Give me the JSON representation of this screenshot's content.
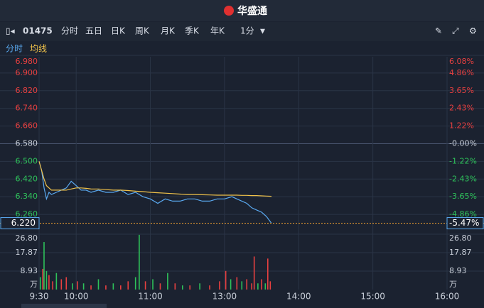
{
  "app": {
    "brand": "华盛通",
    "code": "01475",
    "tabs": [
      "分时",
      "五日",
      "日K",
      "周K",
      "月K",
      "季K",
      "年K"
    ],
    "interval": "1分",
    "legend": [
      "分时",
      "均线"
    ]
  },
  "chart_data": [
    {
      "type": "line",
      "base_price": 6.58,
      "x": [
        0,
        2,
        4,
        6,
        8,
        10,
        14,
        18,
        22,
        26,
        30,
        34,
        38,
        42,
        48,
        54,
        60,
        66,
        72,
        78,
        84,
        90,
        96,
        102,
        108,
        114,
        120,
        126,
        132,
        138,
        144,
        150,
        156,
        160,
        164,
        168,
        172,
        176,
        180,
        184,
        188
      ],
      "series": [
        {
          "name": "分时",
          "color": "#5aa9f0",
          "values": [
            6.5,
            6.46,
            6.38,
            6.33,
            6.36,
            6.35,
            6.36,
            6.37,
            6.38,
            6.41,
            6.39,
            6.37,
            6.37,
            6.36,
            6.37,
            6.36,
            6.36,
            6.37,
            6.35,
            6.36,
            6.34,
            6.33,
            6.31,
            6.33,
            6.32,
            6.32,
            6.33,
            6.33,
            6.32,
            6.32,
            6.33,
            6.33,
            6.34,
            6.33,
            6.32,
            6.31,
            6.29,
            6.28,
            6.27,
            6.25,
            6.22
          ]
        },
        {
          "name": "均线",
          "color": "#f0c24a",
          "values": [
            6.5,
            6.46,
            6.42,
            6.39,
            6.38,
            6.37,
            6.37,
            6.37,
            6.37,
            6.375,
            6.38,
            6.38,
            6.378,
            6.375,
            6.375,
            6.372,
            6.37,
            6.37,
            6.368,
            6.365,
            6.363,
            6.36,
            6.358,
            6.356,
            6.354,
            6.352,
            6.35,
            6.35,
            6.349,
            6.348,
            6.347,
            6.347,
            6.347,
            6.347,
            6.346,
            6.346,
            6.345,
            6.345,
            6.344,
            6.343,
            6.342
          ]
        }
      ],
      "xlim": [
        0,
        330
      ],
      "xticks": [
        {
          "value": 0,
          "label": "9:30"
        },
        {
          "value": 30,
          "label": "10:00"
        },
        {
          "value": 90,
          "label": "11:00"
        },
        {
          "value": 150,
          "label": "13:00"
        },
        {
          "value": 210,
          "label": "14:00"
        },
        {
          "value": 270,
          "label": "15:00"
        },
        {
          "value": 330,
          "label": "16:00"
        }
      ],
      "ylim": [
        6.18,
        6.98
      ],
      "yticks": [
        {
          "value": 6.98,
          "label": "6.980"
        },
        {
          "value": 6.9,
          "label": "6.900"
        },
        {
          "value": 6.82,
          "label": "6.820"
        },
        {
          "value": 6.74,
          "label": "6.740"
        },
        {
          "value": 6.66,
          "label": "6.660"
        },
        {
          "value": 6.58,
          "label": "6.580"
        },
        {
          "value": 6.5,
          "label": "6.500"
        },
        {
          "value": 6.42,
          "label": "6.420"
        },
        {
          "value": 6.34,
          "label": "6.340"
        },
        {
          "value": 6.26,
          "label": "6.260"
        }
      ],
      "y2lim": [
        -6.08,
        6.08
      ],
      "y2ticks": [
        {
          "value": 6.08,
          "label": "6.08%"
        },
        {
          "value": 4.86,
          "label": "4.86%"
        },
        {
          "value": 3.65,
          "label": "3.65%"
        },
        {
          "value": 2.43,
          "label": "2.43%"
        },
        {
          "value": 1.22,
          "label": "1.22%"
        },
        {
          "value": 0,
          "label": "-0.00%"
        },
        {
          "value": -1.22,
          "label": "-1.22%"
        },
        {
          "value": -2.43,
          "label": "-2.43%"
        },
        {
          "value": -3.65,
          "label": "-3.65%"
        },
        {
          "value": -4.86,
          "label": "-4.86%"
        }
      ],
      "last_price": {
        "value": 6.22,
        "label": "6.220"
      },
      "last_change": {
        "value": -5.47,
        "label": "-5.47%"
      },
      "up_color": "#e84040",
      "down_color": "#2ec25a",
      "grid": true
    },
    {
      "type": "bar",
      "unit": "万",
      "x": [
        1,
        3,
        4,
        6,
        8,
        11,
        14,
        18,
        22,
        27,
        31,
        36,
        42,
        48,
        54,
        60,
        66,
        72,
        78,
        81,
        86,
        92,
        98,
        104,
        110,
        116,
        122,
        130,
        138,
        146,
        151,
        155,
        160,
        164,
        168,
        172,
        174,
        177,
        180,
        183,
        185,
        187
      ],
      "values": [
        6,
        10,
        23,
        9,
        7,
        4,
        8,
        5,
        6,
        3,
        4,
        3,
        2,
        5,
        2,
        3,
        2,
        4,
        6,
        26.5,
        4,
        5,
        3,
        8,
        3,
        2,
        2,
        3,
        2,
        4,
        9,
        5,
        6,
        4,
        5,
        3,
        16,
        3,
        5,
        3,
        15,
        4
      ],
      "colors": [
        "#2ec25a",
        "#e84040",
        "#2ec25a",
        "#2ec25a",
        "#e84040",
        "#e84040",
        "#2ec25a",
        "#e84040",
        "#e84040",
        "#2ec25a",
        "#e84040",
        "#2ec25a",
        "#e84040",
        "#2ec25a",
        "#e84040",
        "#2ec25a",
        "#e84040",
        "#e84040",
        "#2ec25a",
        "#2ec25a",
        "#e84040",
        "#2ec25a",
        "#e84040",
        "#2ec25a",
        "#e84040",
        "#2ec25a",
        "#e84040",
        "#2ec25a",
        "#e84040",
        "#e84040",
        "#e84040",
        "#2ec25a",
        "#e84040",
        "#2ec25a",
        "#e84040",
        "#e84040",
        "#e84040",
        "#2ec25a",
        "#e84040",
        "#2ec25a",
        "#e84040",
        "#e84040"
      ],
      "xlim": [
        0,
        330
      ],
      "ylim": [
        0,
        26.8
      ],
      "yticks": [
        {
          "value": 26.8,
          "label": "26.80"
        },
        17.87,
        8.93
      ]
    }
  ]
}
